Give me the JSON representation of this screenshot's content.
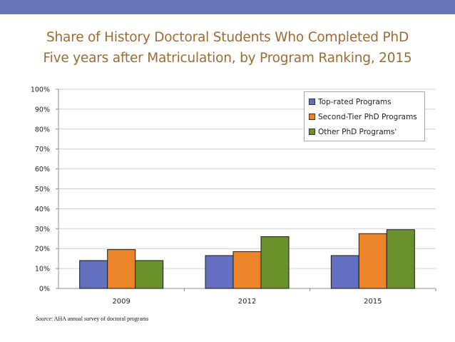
{
  "colors": {
    "top_bar": "#6774b8",
    "title": "#9c6b33",
    "series": [
      "#6270bf",
      "#ec852a",
      "#6a912b"
    ]
  },
  "title_lines": [
    "Share of History Doctoral Students Who Completed PhD",
    "Five years after Matriculation, by Program Ranking, 2015"
  ],
  "source": {
    "label": "Source",
    "text": ": AHA annual survey of doctoral programs"
  },
  "chart_data": {
    "type": "bar",
    "title": "Share of History Doctoral Students Who Completed PhD Five years after Matriculation, by Program Ranking, 2015",
    "xlabel": "",
    "ylabel": "",
    "categories": [
      "2009",
      "2012",
      "2015"
    ],
    "series": [
      {
        "name": "Top-rated Programs",
        "values": [
          14,
          16.5,
          16.5
        ]
      },
      {
        "name": "Second-Tier PhD Programs",
        "values": [
          19.5,
          18.5,
          27.5
        ]
      },
      {
        "name": "Other PhD Programs'",
        "values": [
          14,
          26,
          29.5
        ]
      }
    ],
    "ylim": [
      0,
      100
    ],
    "yticks": [
      "0%",
      "10%",
      "20%",
      "30%",
      "40%",
      "50%",
      "60%",
      "70%",
      "80%",
      "90%",
      "100%"
    ],
    "grid": true,
    "legend_position": "top-right"
  }
}
